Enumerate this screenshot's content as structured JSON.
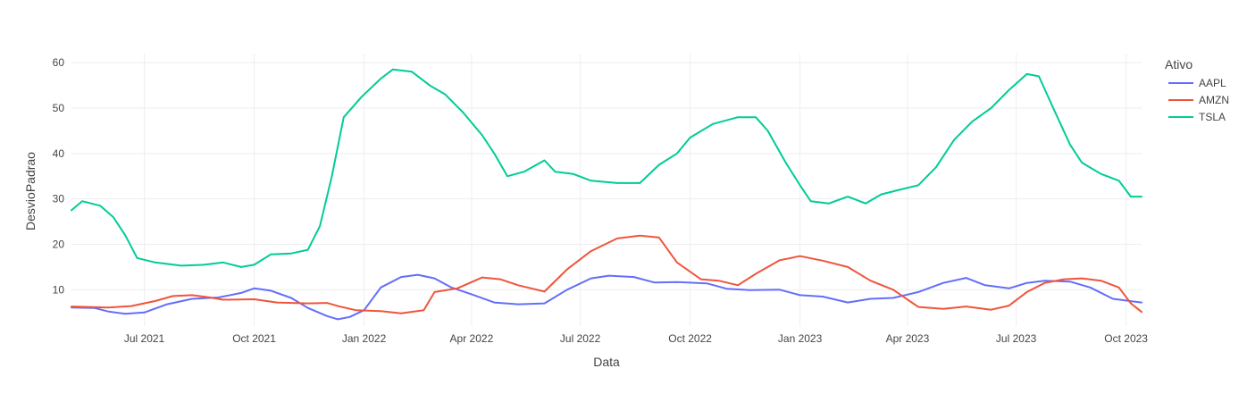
{
  "chart_data": {
    "type": "line",
    "title": "",
    "xlabel": "Data",
    "ylabel": "DesvioPadrao",
    "legend_title": "Ativo",
    "legend_position": "right",
    "grid": true,
    "x_range": [
      "2021-05-01",
      "2023-10-14"
    ],
    "ylim": [
      2,
      62
    ],
    "x_ticks": [
      {
        "date": "2021-07-01",
        "label": "Jul 2021"
      },
      {
        "date": "2021-10-01",
        "label": "Oct 2021"
      },
      {
        "date": "2022-01-01",
        "label": "Jan 2022"
      },
      {
        "date": "2022-04-01",
        "label": "Apr 2022"
      },
      {
        "date": "2022-07-01",
        "label": "Jul 2022"
      },
      {
        "date": "2022-10-01",
        "label": "Oct 2022"
      },
      {
        "date": "2023-01-01",
        "label": "Jan 2023"
      },
      {
        "date": "2023-04-01",
        "label": "Apr 2023"
      },
      {
        "date": "2023-07-01",
        "label": "Jul 2023"
      },
      {
        "date": "2023-10-01",
        "label": "Oct 2023"
      }
    ],
    "y_ticks": [
      {
        "value": 10,
        "label": "10"
      },
      {
        "value": 20,
        "label": "20"
      },
      {
        "value": 30,
        "label": "30"
      },
      {
        "value": 40,
        "label": "40"
      },
      {
        "value": 50,
        "label": "50"
      },
      {
        "value": 60,
        "label": "60"
      }
    ],
    "series": [
      {
        "name": "AAPL",
        "color": "#636efa",
        "points": [
          [
            "2021-05-01",
            6.1
          ],
          [
            "2021-05-20",
            6.0
          ],
          [
            "2021-06-01",
            5.2
          ],
          [
            "2021-06-15",
            4.7
          ],
          [
            "2021-07-01",
            5.0
          ],
          [
            "2021-07-20",
            6.8
          ],
          [
            "2021-08-10",
            8.0
          ],
          [
            "2021-09-01",
            8.3
          ],
          [
            "2021-09-20",
            9.3
          ],
          [
            "2021-10-01",
            10.3
          ],
          [
            "2021-10-15",
            9.8
          ],
          [
            "2021-11-01",
            8.2
          ],
          [
            "2021-11-15",
            6.0
          ],
          [
            "2021-12-01",
            4.2
          ],
          [
            "2021-12-10",
            3.5
          ],
          [
            "2021-12-20",
            4.0
          ],
          [
            "2022-01-01",
            5.5
          ],
          [
            "2022-01-15",
            10.5
          ],
          [
            "2022-02-01",
            12.8
          ],
          [
            "2022-02-15",
            13.3
          ],
          [
            "2022-03-01",
            12.5
          ],
          [
            "2022-03-15",
            10.5
          ],
          [
            "2022-04-01",
            9.0
          ],
          [
            "2022-04-20",
            7.2
          ],
          [
            "2022-05-10",
            6.8
          ],
          [
            "2022-06-01",
            7.0
          ],
          [
            "2022-06-20",
            10.0
          ],
          [
            "2022-07-10",
            12.5
          ],
          [
            "2022-07-25",
            13.1
          ],
          [
            "2022-08-15",
            12.8
          ],
          [
            "2022-09-01",
            11.6
          ],
          [
            "2022-09-20",
            11.7
          ],
          [
            "2022-10-15",
            11.4
          ],
          [
            "2022-11-01",
            10.2
          ],
          [
            "2022-11-20",
            9.9
          ],
          [
            "2022-12-15",
            10.0
          ],
          [
            "2023-01-01",
            8.8
          ],
          [
            "2023-01-20",
            8.5
          ],
          [
            "2023-02-10",
            7.2
          ],
          [
            "2023-03-01",
            8.0
          ],
          [
            "2023-03-20",
            8.2
          ],
          [
            "2023-04-10",
            9.5
          ],
          [
            "2023-05-01",
            11.5
          ],
          [
            "2023-05-20",
            12.6
          ],
          [
            "2023-06-05",
            11.0
          ],
          [
            "2023-06-25",
            10.3
          ],
          [
            "2023-07-10",
            11.5
          ],
          [
            "2023-07-25",
            12.0
          ],
          [
            "2023-08-15",
            11.8
          ],
          [
            "2023-09-01",
            10.5
          ],
          [
            "2023-09-20",
            8.0
          ],
          [
            "2023-10-14",
            7.2
          ]
        ]
      },
      {
        "name": "AMZN",
        "color": "#ef553b",
        "points": [
          [
            "2021-05-01",
            6.3
          ],
          [
            "2021-06-01",
            6.1
          ],
          [
            "2021-06-20",
            6.4
          ],
          [
            "2021-07-10",
            7.5
          ],
          [
            "2021-07-25",
            8.6
          ],
          [
            "2021-08-10",
            8.8
          ],
          [
            "2021-08-25",
            8.3
          ],
          [
            "2021-09-05",
            7.8
          ],
          [
            "2021-10-01",
            7.9
          ],
          [
            "2021-10-20",
            7.2
          ],
          [
            "2021-11-15",
            7.0
          ],
          [
            "2021-12-01",
            7.1
          ],
          [
            "2021-12-10",
            6.4
          ],
          [
            "2021-12-25",
            5.5
          ],
          [
            "2022-01-15",
            5.3
          ],
          [
            "2022-02-01",
            4.8
          ],
          [
            "2022-02-20",
            5.5
          ],
          [
            "2022-03-01",
            9.5
          ],
          [
            "2022-03-20",
            10.3
          ],
          [
            "2022-04-10",
            12.7
          ],
          [
            "2022-04-25",
            12.3
          ],
          [
            "2022-05-10",
            11.0
          ],
          [
            "2022-06-01",
            9.6
          ],
          [
            "2022-06-20",
            14.5
          ],
          [
            "2022-07-10",
            18.5
          ],
          [
            "2022-08-01",
            21.3
          ],
          [
            "2022-08-20",
            21.9
          ],
          [
            "2022-09-05",
            21.5
          ],
          [
            "2022-09-20",
            16.0
          ],
          [
            "2022-10-10",
            12.3
          ],
          [
            "2022-10-25",
            12.0
          ],
          [
            "2022-11-10",
            11.0
          ],
          [
            "2022-11-25",
            13.5
          ],
          [
            "2022-12-15",
            16.5
          ],
          [
            "2023-01-01",
            17.4
          ],
          [
            "2023-01-20",
            16.4
          ],
          [
            "2023-02-10",
            15.0
          ],
          [
            "2023-03-01",
            12.0
          ],
          [
            "2023-03-20",
            10.0
          ],
          [
            "2023-04-10",
            6.2
          ],
          [
            "2023-05-01",
            5.8
          ],
          [
            "2023-05-20",
            6.3
          ],
          [
            "2023-06-10",
            5.6
          ],
          [
            "2023-06-25",
            6.5
          ],
          [
            "2023-07-10",
            9.5
          ],
          [
            "2023-07-25",
            11.5
          ],
          [
            "2023-08-10",
            12.3
          ],
          [
            "2023-08-25",
            12.5
          ],
          [
            "2023-09-10",
            12.0
          ],
          [
            "2023-09-25",
            10.5
          ],
          [
            "2023-10-05",
            7.0
          ],
          [
            "2023-10-14",
            5.1
          ]
        ]
      },
      {
        "name": "TSLA",
        "color": "#00cc96",
        "points": [
          [
            "2021-05-01",
            27.5
          ],
          [
            "2021-05-10",
            29.5
          ],
          [
            "2021-05-25",
            28.5
          ],
          [
            "2021-06-05",
            26.0
          ],
          [
            "2021-06-15",
            22.0
          ],
          [
            "2021-06-25",
            17.0
          ],
          [
            "2021-07-10",
            16.0
          ],
          [
            "2021-08-01",
            15.3
          ],
          [
            "2021-08-20",
            15.5
          ],
          [
            "2021-09-05",
            16.0
          ],
          [
            "2021-09-20",
            15.0
          ],
          [
            "2021-10-01",
            15.5
          ],
          [
            "2021-10-15",
            17.8
          ],
          [
            "2021-11-01",
            18.0
          ],
          [
            "2021-11-15",
            18.8
          ],
          [
            "2021-11-25",
            24.0
          ],
          [
            "2021-12-05",
            35.0
          ],
          [
            "2021-12-15",
            48.0
          ],
          [
            "2021-12-30",
            52.5
          ],
          [
            "2022-01-15",
            56.5
          ],
          [
            "2022-01-25",
            58.5
          ],
          [
            "2022-02-10",
            58.0
          ],
          [
            "2022-02-25",
            55.0
          ],
          [
            "2022-03-10",
            53.0
          ],
          [
            "2022-03-25",
            49.0
          ],
          [
            "2022-04-10",
            44.0
          ],
          [
            "2022-04-20",
            40.0
          ],
          [
            "2022-05-01",
            35.0
          ],
          [
            "2022-05-15",
            36.0
          ],
          [
            "2022-06-01",
            38.5
          ],
          [
            "2022-06-10",
            36.0
          ],
          [
            "2022-06-25",
            35.5
          ],
          [
            "2022-07-10",
            34.0
          ],
          [
            "2022-08-01",
            33.5
          ],
          [
            "2022-08-20",
            33.5
          ],
          [
            "2022-09-05",
            37.5
          ],
          [
            "2022-09-20",
            40.0
          ],
          [
            "2022-10-01",
            43.5
          ],
          [
            "2022-10-20",
            46.5
          ],
          [
            "2022-11-10",
            48.0
          ],
          [
            "2022-11-25",
            48.0
          ],
          [
            "2022-12-05",
            45.0
          ],
          [
            "2022-12-20",
            38.0
          ],
          [
            "2023-01-01",
            33.0
          ],
          [
            "2023-01-10",
            29.5
          ],
          [
            "2023-01-25",
            29.0
          ],
          [
            "2023-02-10",
            30.5
          ],
          [
            "2023-02-25",
            29.0
          ],
          [
            "2023-03-10",
            31.0
          ],
          [
            "2023-03-25",
            32.0
          ],
          [
            "2023-04-10",
            33.0
          ],
          [
            "2023-04-25",
            37.0
          ],
          [
            "2023-05-10",
            43.0
          ],
          [
            "2023-05-25",
            47.0
          ],
          [
            "2023-06-10",
            50.0
          ],
          [
            "2023-06-25",
            54.0
          ],
          [
            "2023-07-10",
            57.5
          ],
          [
            "2023-07-20",
            57.0
          ],
          [
            "2023-08-01",
            50.0
          ],
          [
            "2023-08-15",
            42.0
          ],
          [
            "2023-08-25",
            38.0
          ],
          [
            "2023-09-10",
            35.5
          ],
          [
            "2023-09-25",
            34.0
          ],
          [
            "2023-10-05",
            30.5
          ],
          [
            "2023-10-14",
            30.5
          ]
        ]
      }
    ]
  }
}
